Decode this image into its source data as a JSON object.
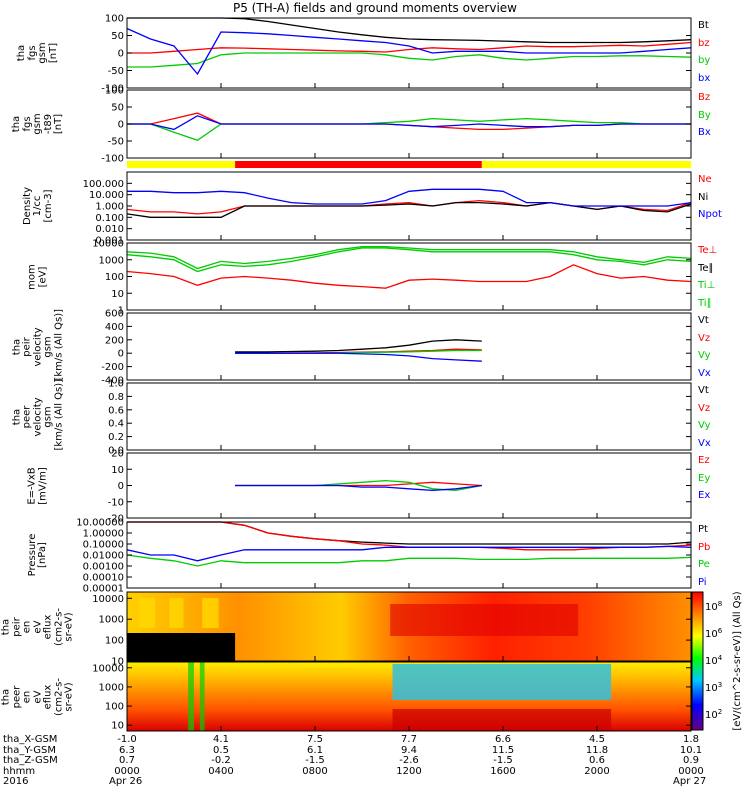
{
  "title": "P5 (TH-A) fields and ground moments overview",
  "chart_data": [
    {
      "type": "line",
      "id": "fgs_gsm",
      "ylabel_lines": [
        "tha",
        "fgs",
        "gsm",
        "[nT]"
      ],
      "ylim": [
        -100,
        100
      ],
      "yticks": [
        "100",
        "50",
        "0",
        "-50",
        "-100"
      ],
      "legend": [
        {
          "label": "Bt",
          "color": "#000000"
        },
        {
          "label": "bz",
          "color": "#ff0000"
        },
        {
          "label": "by",
          "color": "#00cc00"
        },
        {
          "label": "bx",
          "color": "#0000ff"
        }
      ],
      "x_hours": [
        0,
        1,
        2,
        3,
        4,
        5,
        6,
        7,
        8,
        9,
        10,
        11,
        12,
        13,
        14,
        15,
        16,
        17,
        18,
        19,
        20,
        21,
        22,
        23,
        24
      ],
      "series": [
        {
          "name": "Bt",
          "values": [
            100,
            100,
            100,
            100,
            100,
            98,
            90,
            80,
            70,
            60,
            52,
            45,
            40,
            38,
            37,
            36,
            34,
            32,
            30,
            30,
            30,
            30,
            32,
            35,
            38
          ]
        },
        {
          "name": "bz",
          "values": [
            0,
            0,
            5,
            10,
            15,
            14,
            12,
            10,
            8,
            6,
            5,
            3,
            10,
            15,
            12,
            10,
            15,
            20,
            18,
            18,
            20,
            22,
            20,
            25,
            30
          ]
        },
        {
          "name": "by",
          "values": [
            -40,
            -40,
            -35,
            -30,
            -5,
            0,
            0,
            0,
            0,
            0,
            0,
            -5,
            -15,
            -20,
            -10,
            -5,
            -15,
            -20,
            -15,
            -10,
            -10,
            -8,
            -8,
            -10,
            -12
          ]
        },
        {
          "name": "bx",
          "values": [
            70,
            40,
            20,
            -60,
            60,
            58,
            55,
            50,
            45,
            40,
            35,
            30,
            20,
            0,
            5,
            5,
            5,
            0,
            0,
            0,
            0,
            0,
            5,
            10,
            15
          ]
        }
      ]
    },
    {
      "type": "line",
      "id": "fgs_gsm_t89",
      "ylabel_lines": [
        "tha",
        "fgs",
        "gsm",
        "-t89",
        "[nT]"
      ],
      "ylim": [
        -125,
        125
      ],
      "yticks": [
        "100",
        "50",
        "0",
        "-50",
        "-100"
      ],
      "legend": [
        {
          "label": "Bz",
          "color": "#ff0000"
        },
        {
          "label": "By",
          "color": "#00cc00"
        },
        {
          "label": "Bx",
          "color": "#0000ff"
        }
      ],
      "x_hours": [
        0,
        1,
        2,
        3,
        4,
        5,
        6,
        7,
        8,
        9,
        10,
        11,
        12,
        13,
        14,
        15,
        16,
        17,
        18,
        19,
        20,
        21,
        22,
        23,
        24
      ],
      "series": [
        {
          "name": "Bz",
          "values": [
            0,
            0,
            20,
            40,
            0,
            0,
            0,
            0,
            0,
            0,
            0,
            0,
            -5,
            -10,
            -15,
            -20,
            -20,
            -15,
            -10,
            -5,
            -5,
            0,
            0,
            0,
            0
          ]
        },
        {
          "name": "By",
          "values": [
            0,
            0,
            -30,
            -60,
            0,
            0,
            0,
            0,
            0,
            0,
            0,
            5,
            10,
            20,
            15,
            10,
            15,
            20,
            15,
            10,
            5,
            5,
            0,
            0,
            0
          ]
        },
        {
          "name": "Bx",
          "values": [
            0,
            0,
            -20,
            30,
            0,
            0,
            0,
            0,
            0,
            0,
            0,
            0,
            -5,
            -10,
            -5,
            0,
            -5,
            -10,
            -10,
            -5,
            -5,
            0,
            0,
            0,
            0
          ]
        }
      ]
    },
    {
      "type": "line",
      "id": "density",
      "ylabel_lines": [
        "Density",
        "1/cc",
        "[cm-3]"
      ],
      "yscale": "log",
      "ylim": [
        0.001,
        1000
      ],
      "yticks": [
        "100.000",
        "10.000",
        "1.000",
        "0.100",
        "0.010",
        "0.001"
      ],
      "legend": [
        {
          "label": "Ne",
          "color": "#ff0000"
        },
        {
          "label": "Ni",
          "color": "#000000"
        },
        {
          "label": "Npot",
          "color": "#0000ff"
        }
      ],
      "x_hours": [
        0,
        1,
        2,
        3,
        4,
        5,
        6,
        7,
        8,
        9,
        10,
        11,
        12,
        13,
        14,
        15,
        16,
        17,
        18,
        19,
        20,
        21,
        22,
        23,
        24
      ],
      "series": [
        {
          "name": "Ne",
          "values": [
            0.5,
            0.3,
            0.3,
            0.2,
            0.3,
            1.0,
            1.0,
            1.0,
            1.0,
            1.0,
            1.0,
            1.5,
            2,
            1,
            2,
            3,
            2,
            1,
            2,
            1,
            0.5,
            1,
            0.5,
            0.4,
            2
          ]
        },
        {
          "name": "Ni",
          "values": [
            0.2,
            0.1,
            0.1,
            0.1,
            0.1,
            1.0,
            1.0,
            1.0,
            1.0,
            1.0,
            1.0,
            1.2,
            1.5,
            1,
            2,
            2,
            1.5,
            1,
            2,
            1,
            0.5,
            1,
            0.4,
            0.3,
            1.5
          ]
        },
        {
          "name": "Npot",
          "values": [
            20,
            20,
            15,
            15,
            20,
            15,
            5,
            2,
            1.5,
            1.5,
            1.5,
            3,
            20,
            30,
            30,
            30,
            20,
            2,
            2,
            1,
            1,
            1,
            1,
            1,
            2
          ]
        }
      ]
    },
    {
      "type": "line",
      "id": "temperature",
      "ylabel_lines": [
        "mom",
        "[eV]"
      ],
      "yscale": "log",
      "ylim": [
        1,
        10000
      ],
      "yticks": [
        "10000",
        "1000",
        "100",
        "10",
        "1"
      ],
      "legend": [
        {
          "label": "Te⊥",
          "color": "#ff0000"
        },
        {
          "label": "Te∥",
          "color": "#000000"
        },
        {
          "label": "Ti⊥",
          "color": "#00cc00"
        },
        {
          "label": "Ti∥",
          "color": "#00cc00"
        }
      ],
      "x_hours": [
        0,
        1,
        2,
        3,
        4,
        5,
        6,
        7,
        8,
        9,
        10,
        11,
        12,
        13,
        14,
        15,
        16,
        17,
        18,
        19,
        20,
        21,
        22,
        23,
        24
      ],
      "series": [
        {
          "name": "Te⊥",
          "values": [
            200,
            150,
            100,
            30,
            80,
            100,
            80,
            60,
            40,
            30,
            25,
            20,
            60,
            70,
            60,
            50,
            50,
            50,
            100,
            500,
            150,
            80,
            100,
            60,
            50
          ]
        },
        {
          "name": "Ti⊥",
          "values": [
            2000,
            1500,
            1000,
            200,
            500,
            400,
            500,
            800,
            1500,
            3000,
            5000,
            5000,
            4000,
            3000,
            3000,
            3000,
            3000,
            3000,
            3000,
            2000,
            1000,
            800,
            500,
            1000,
            800
          ]
        },
        {
          "name": "Ti∥",
          "values": [
            3000,
            2500,
            1500,
            300,
            800,
            600,
            800,
            1200,
            2000,
            4000,
            6000,
            6000,
            5000,
            4000,
            4000,
            4000,
            4000,
            4000,
            4000,
            3000,
            1500,
            1000,
            700,
            1500,
            1200
          ]
        }
      ]
    },
    {
      "type": "line",
      "id": "peir_velocity",
      "ylabel_lines": [
        "tha",
        "peir",
        "velocity",
        "gsm",
        "[km/s (All Qs)]"
      ],
      "ylim": [
        -400,
        600
      ],
      "yticks": [
        "600",
        "400",
        "200",
        "0",
        "-200",
        "-400"
      ],
      "legend": [
        {
          "label": "Vt",
          "color": "#000000"
        },
        {
          "label": "Vz",
          "color": "#ff0000"
        },
        {
          "label": "Vy",
          "color": "#00cc00"
        },
        {
          "label": "Vx",
          "color": "#0000ff"
        }
      ],
      "x_hours": [
        4.6,
        6,
        7,
        8,
        9,
        10,
        11,
        12,
        13,
        14,
        15.1
      ],
      "series": [
        {
          "name": "Vt",
          "values": [
            20,
            20,
            25,
            30,
            40,
            60,
            80,
            120,
            180,
            200,
            180
          ]
        },
        {
          "name": "Vz",
          "values": [
            0,
            0,
            5,
            5,
            10,
            15,
            20,
            30,
            40,
            60,
            50
          ]
        },
        {
          "name": "Vy",
          "values": [
            0,
            0,
            0,
            0,
            5,
            10,
            15,
            20,
            30,
            40,
            40
          ]
        },
        {
          "name": "Vx",
          "values": [
            0,
            0,
            0,
            0,
            0,
            -10,
            -20,
            -40,
            -80,
            -100,
            -120
          ]
        }
      ]
    },
    {
      "type": "line",
      "id": "peer_velocity",
      "ylabel_lines": [
        "tha",
        "peer",
        "velocity",
        "gsm",
        "[km/s (All Qs)]"
      ],
      "ylim": [
        0,
        1
      ],
      "yticks": [
        "1.0",
        "0.8",
        "0.6",
        "0.4",
        "0.2",
        "0.0"
      ],
      "legend": [
        {
          "label": "Vt",
          "color": "#000000"
        },
        {
          "label": "Vz",
          "color": "#ff0000"
        },
        {
          "label": "Vy",
          "color": "#00cc00"
        },
        {
          "label": "Vx",
          "color": "#0000ff"
        }
      ],
      "series": []
    },
    {
      "type": "line",
      "id": "efield",
      "ylabel_lines": [
        "E=-VxB",
        "[mV/m]"
      ],
      "ylim": [
        -20,
        20
      ],
      "yticks": [
        "20",
        "10",
        "0",
        "-10",
        "-20"
      ],
      "legend": [
        {
          "label": "Ez",
          "color": "#ff0000"
        },
        {
          "label": "Ey",
          "color": "#00cc00"
        },
        {
          "label": "Ex",
          "color": "#0000ff"
        }
      ],
      "x_hours": [
        4.6,
        6,
        7,
        8,
        9,
        10,
        11,
        12,
        13,
        14,
        15.1
      ],
      "series": [
        {
          "name": "Ez",
          "values": [
            0,
            0,
            0,
            0,
            0,
            0,
            0,
            1,
            2,
            1,
            0
          ]
        },
        {
          "name": "Ey",
          "values": [
            0,
            0,
            0,
            0,
            1,
            2,
            3,
            2,
            -2,
            -3,
            0
          ]
        },
        {
          "name": "Ex",
          "values": [
            0,
            0,
            0,
            0,
            0,
            -1,
            -1,
            -2,
            -3,
            -2,
            0
          ]
        }
      ]
    },
    {
      "type": "line",
      "id": "pressure",
      "ylabel_lines": [
        "Pressure",
        "[nPa]"
      ],
      "yscale": "log",
      "ylim": [
        1e-05,
        10
      ],
      "yticks": [
        "10.00000",
        "1.00000",
        "0.10000",
        "0.01000",
        "0.00100",
        "0.00010",
        "0.00001"
      ],
      "legend": [
        {
          "label": "Pt",
          "color": "#000000"
        },
        {
          "label": "Pb",
          "color": "#ff0000"
        },
        {
          "label": "Pe",
          "color": "#00cc00"
        },
        {
          "label": "Pi",
          "color": "#0000ff"
        }
      ],
      "x_hours": [
        0,
        1,
        2,
        3,
        4,
        5,
        6,
        7,
        8,
        9,
        10,
        11,
        12,
        13,
        14,
        15,
        16,
        17,
        18,
        19,
        20,
        21,
        22,
        23,
        24
      ],
      "series": [
        {
          "name": "Pt",
          "values": [
            10,
            10,
            10,
            10,
            10,
            5,
            1,
            0.5,
            0.3,
            0.2,
            0.15,
            0.12,
            0.1,
            0.1,
            0.1,
            0.1,
            0.1,
            0.1,
            0.1,
            0.1,
            0.1,
            0.1,
            0.1,
            0.1,
            0.15
          ]
        },
        {
          "name": "Pb",
          "values": [
            10,
            10,
            10,
            10,
            10,
            5,
            1,
            0.5,
            0.3,
            0.2,
            0.1,
            0.08,
            0.05,
            0.05,
            0.05,
            0.05,
            0.04,
            0.03,
            0.03,
            0.03,
            0.04,
            0.05,
            0.05,
            0.06,
            0.08
          ]
        },
        {
          "name": "Pe",
          "values": [
            0.01,
            0.005,
            0.003,
            0.001,
            0.003,
            0.002,
            0.002,
            0.002,
            0.002,
            0.002,
            0.003,
            0.003,
            0.005,
            0.005,
            0.005,
            0.004,
            0.004,
            0.004,
            0.005,
            0.005,
            0.005,
            0.005,
            0.005,
            0.005,
            0.006
          ]
        },
        {
          "name": "Pi",
          "values": [
            0.03,
            0.01,
            0.01,
            0.003,
            0.01,
            0.03,
            0.03,
            0.03,
            0.03,
            0.03,
            0.03,
            0.05,
            0.05,
            0.05,
            0.05,
            0.05,
            0.05,
            0.05,
            0.05,
            0.05,
            0.05,
            0.05,
            0.05,
            0.06,
            0.05
          ]
        }
      ]
    },
    {
      "type": "heatmap",
      "id": "peir_eflux",
      "ylabel_lines": [
        "tha",
        "peir",
        "en",
        "eV",
        "eflux",
        "(cm2-s-",
        "sr-eV)"
      ],
      "yscale": "log",
      "ylim": [
        10,
        20000
      ],
      "yticks": [
        "10000",
        "1000",
        "100",
        "10"
      ]
    },
    {
      "type": "heatmap",
      "id": "peer_eflux",
      "ylabel_lines": [
        "tha",
        "peer",
        "en",
        "eV",
        "eflux",
        "(cm2-s-",
        "sr-eV)"
      ],
      "yscale": "log",
      "ylim": [
        5,
        20000
      ],
      "yticks": [
        "10000",
        "1000",
        "100",
        "10"
      ]
    }
  ],
  "mode_bar": {
    "segments": [
      {
        "from": 0,
        "to": 4.6,
        "color": "#ffff00"
      },
      {
        "from": 4.6,
        "to": 15.1,
        "color": "#ff0000"
      },
      {
        "from": 15.1,
        "to": 24,
        "color": "#ffff00"
      }
    ]
  },
  "colorbar": {
    "label": "[eV/(cm^2-s-sr-eV)] (All Qs)",
    "ticks_top": [
      "10^6",
      "10^4",
      "10^2"
    ],
    "ticks_bottom": [
      "10^8",
      "10^6",
      "10^4",
      "10^3",
      "10^2"
    ]
  },
  "xaxis": {
    "rows": [
      {
        "label": "tha_X-GSM",
        "values": [
          "-1.0",
          "4.1",
          "7.5",
          "7.7",
          "6.6",
          "4.5",
          "1.8"
        ]
      },
      {
        "label": "tha_Y-GSM",
        "values": [
          "6.3",
          "0.5",
          "6.1",
          "9.4",
          "11.5",
          "11.8",
          "10.1"
        ]
      },
      {
        "label": "tha_Z-GSM",
        "values": [
          "0.7",
          "-0.2",
          "-1.5",
          "-2.6",
          "-1.5",
          "0.6",
          "0.9"
        ]
      },
      {
        "label": "hhmm",
        "values": [
          "0000",
          "0400",
          "0800",
          "1200",
          "1600",
          "2000",
          "0000"
        ]
      }
    ],
    "year": "2016",
    "dates": [
      "Apr 26",
      "Apr 27"
    ]
  }
}
